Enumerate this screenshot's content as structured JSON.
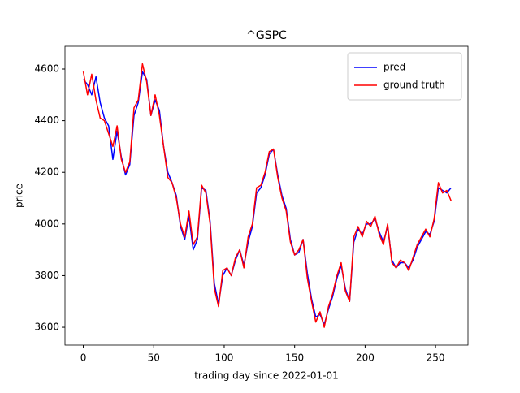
{
  "chart_data": {
    "type": "line",
    "title": "^GSPC",
    "xlabel": "trading day since 2022-01-01",
    "ylabel": "price",
    "x": [
      0,
      3,
      6,
      9,
      12,
      15,
      18,
      21,
      24,
      27,
      30,
      33,
      36,
      39,
      42,
      45,
      48,
      51,
      54,
      57,
      60,
      63,
      66,
      69,
      72,
      75,
      78,
      81,
      84,
      87,
      90,
      93,
      96,
      99,
      102,
      105,
      108,
      111,
      114,
      117,
      120,
      123,
      126,
      129,
      132,
      135,
      138,
      141,
      144,
      147,
      150,
      153,
      156,
      159,
      162,
      165,
      168,
      171,
      174,
      177,
      180,
      183,
      186,
      189,
      192,
      195,
      198,
      201,
      204,
      207,
      210,
      213,
      216,
      219,
      222,
      225,
      228,
      231,
      234,
      237,
      240,
      243,
      246,
      249,
      252,
      255,
      258,
      261
    ],
    "series": [
      {
        "name": "pred",
        "color": "#0000ff",
        "values": [
          4560,
          4540,
          4500,
          4570,
          4470,
          4410,
          4380,
          4250,
          4360,
          4260,
          4190,
          4230,
          4420,
          4470,
          4590,
          4560,
          4420,
          4480,
          4440,
          4300,
          4200,
          4160,
          4110,
          3990,
          3940,
          4030,
          3900,
          3940,
          4140,
          4130,
          4010,
          3770,
          3690,
          3800,
          3830,
          3800,
          3860,
          3900,
          3840,
          3930,
          3990,
          4120,
          4140,
          4190,
          4270,
          4290,
          4190,
          4110,
          4060,
          3940,
          3880,
          3890,
          3940,
          3810,
          3710,
          3640,
          3650,
          3610,
          3670,
          3720,
          3790,
          3840,
          3750,
          3700,
          3930,
          3980,
          3960,
          4000,
          4000,
          4020,
          3970,
          3930,
          3990,
          3860,
          3830,
          3850,
          3850,
          3830,
          3860,
          3910,
          3940,
          3970,
          3960,
          4010,
          4140,
          4130,
          4120,
          4140
        ]
      },
      {
        "name": "ground truth",
        "color": "#ff0000",
        "values": [
          4590,
          4500,
          4580,
          4480,
          4410,
          4400,
          4350,
          4300,
          4380,
          4250,
          4200,
          4240,
          4450,
          4480,
          4620,
          4550,
          4420,
          4500,
          4420,
          4300,
          4180,
          4160,
          4100,
          4000,
          3950,
          4050,
          3920,
          3950,
          4150,
          4120,
          4000,
          3750,
          3680,
          3820,
          3830,
          3800,
          3870,
          3900,
          3830,
          3950,
          4000,
          4140,
          4150,
          4200,
          4280,
          4290,
          4180,
          4100,
          4050,
          3930,
          3880,
          3900,
          3940,
          3790,
          3700,
          3620,
          3660,
          3600,
          3680,
          3730,
          3800,
          3850,
          3740,
          3700,
          3950,
          3990,
          3950,
          4010,
          3990,
          4030,
          3960,
          3920,
          4000,
          3850,
          3830,
          3860,
          3850,
          3820,
          3870,
          3920,
          3950,
          3980,
          3950,
          4020,
          4160,
          4120,
          4130,
          4090
        ]
      }
    ],
    "xlim": [
      -13,
      273
    ],
    "ylim": [
      3531,
      4688
    ],
    "xticks": [
      0,
      50,
      100,
      150,
      200,
      250
    ],
    "yticks": [
      3600,
      3800,
      4000,
      4200,
      4400,
      4600
    ],
    "legend": "upper right"
  }
}
